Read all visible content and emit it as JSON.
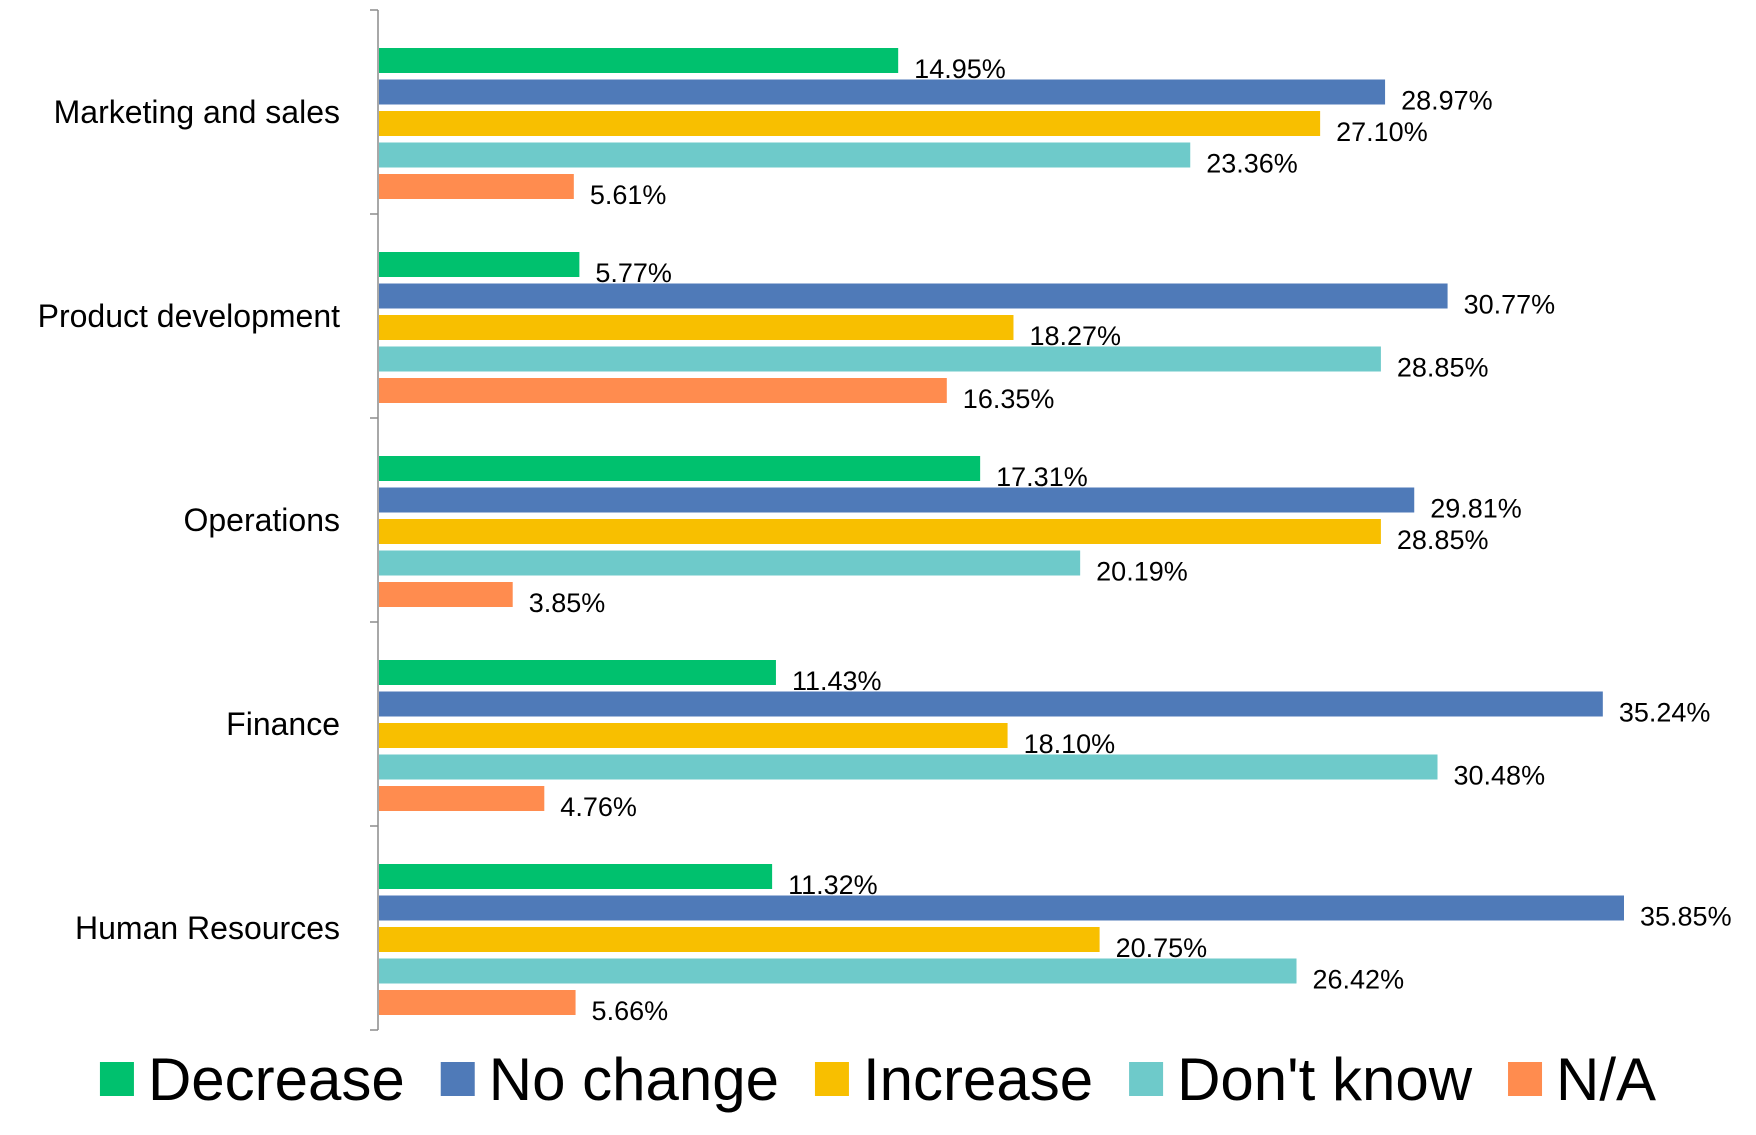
{
  "chart_data": {
    "type": "bar",
    "orientation": "horizontal",
    "categories": [
      "Marketing and sales",
      "Product development",
      "Operations",
      "Finance",
      "Human Resources"
    ],
    "series": [
      {
        "name": "Decrease",
        "color": "#00c16e",
        "values": [
          14.95,
          5.77,
          17.31,
          11.43,
          11.32
        ],
        "labels": [
          "14.95%",
          "5.77%",
          "17.31%",
          "11.43%",
          "11.32%"
        ]
      },
      {
        "name": "No change",
        "color": "#4f7ab8",
        "values": [
          28.97,
          30.77,
          29.81,
          35.24,
          35.85
        ],
        "labels": [
          "28.97%",
          "30.77%",
          "29.81%",
          "35.24%",
          "35.85%"
        ]
      },
      {
        "name": "Increase",
        "color": "#f8bf00",
        "values": [
          27.1,
          18.27,
          28.85,
          18.1,
          20.75
        ],
        "labels": [
          "27.10%",
          "18.27%",
          "28.85%",
          "18.10%",
          "20.75%"
        ]
      },
      {
        "name": "Don't know",
        "color": "#6ecaca",
        "values": [
          23.36,
          28.85,
          20.19,
          30.48,
          26.42
        ],
        "labels": [
          "23.36%",
          "28.85%",
          "20.19%",
          "30.48%",
          "26.42%"
        ]
      },
      {
        "name": "N/A",
        "color": "#ff8c4f",
        "values": [
          5.61,
          16.35,
          3.85,
          4.76,
          5.66
        ],
        "labels": [
          "5.61%",
          "16.35%",
          "3.85%",
          "4.76%",
          "5.66%"
        ]
      }
    ],
    "xlim": [
      0,
      35.85
    ],
    "grid": false,
    "legend_position": "bottom",
    "data_labels": true
  }
}
